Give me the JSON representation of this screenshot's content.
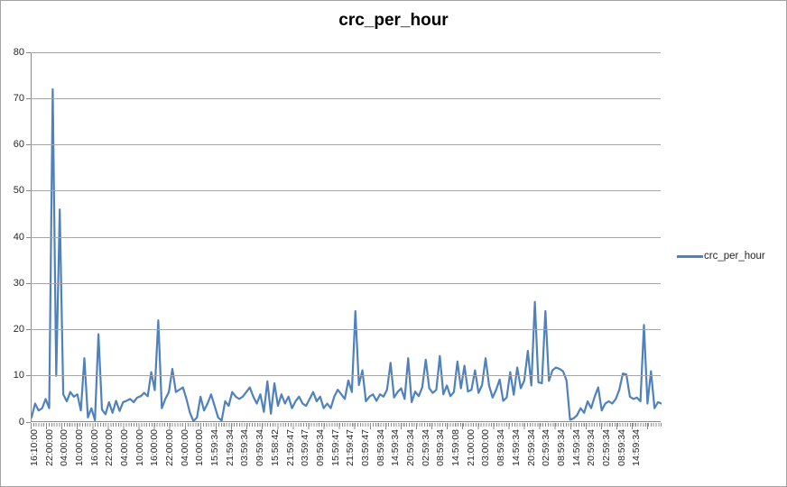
{
  "title": "crc_per_hour",
  "legend": {
    "label": "crc_per_hour"
  },
  "colors": {
    "series_line": "#4F81BD",
    "gridline": "#A6A6A6",
    "axis_line": "#8C8C8C",
    "tick_text": "#262626",
    "title_text": "#000000",
    "chart_border": "#A3A3A3",
    "background": "#FFFFFF"
  },
  "chart_data": {
    "type": "line",
    "title": "crc_per_hour",
    "xlabel": "",
    "ylabel": "",
    "ylim": [
      0,
      80
    ],
    "yticks": [
      0,
      10,
      20,
      30,
      40,
      50,
      60,
      70,
      80
    ],
    "grid": true,
    "legend_position": "right",
    "x_tick_labels": [
      "16:10:00",
      "22:00:00",
      "04:00:00",
      "10:00:00",
      "16:00:00",
      "22:00:00",
      "04:00:00",
      "10:00:00",
      "16:00:00",
      "22:00:00",
      "04:00:00",
      "10:00:00",
      "15:59:34",
      "21:59:34",
      "03:59:34",
      "09:59:34",
      "15:58:42",
      "21:59:47",
      "03:59:47",
      "09:59:34",
      "15:59:47",
      "21:59:47",
      "03:59:47",
      "08:59:34",
      "14:59:34",
      "20:59:34",
      "02:59:34",
      "08:59:34",
      "14:59:08",
      "21:00:00",
      "03:00:00",
      "08:59:34",
      "14:59:34",
      "20:59:34",
      "02:59:34",
      "08:59:34",
      "14:59:34",
      "20:59:34",
      "02:59:34",
      "08:59:34",
      "14:59:34"
    ],
    "series": [
      {
        "name": "crc_per_hour",
        "color": "#4F81BD",
        "values": [
          1,
          4,
          2.5,
          3,
          5,
          3,
          72,
          10,
          46,
          6,
          4.5,
          6.5,
          5.5,
          6,
          2.5,
          13.8,
          1,
          3,
          0.4,
          19,
          2.7,
          1.7,
          4.3,
          2,
          4.6,
          2.4,
          4.3,
          4.6,
          5,
          4.3,
          5.3,
          5.6,
          6.3,
          5.6,
          10.8,
          6.9,
          22,
          3,
          5,
          6.5,
          11.5,
          6.5,
          7,
          7.5,
          5,
          2,
          0.2,
          1,
          5.5,
          2.5,
          4,
          6,
          3.5,
          1,
          0.3,
          4.5,
          3.5,
          6.5,
          5.5,
          5,
          5.5,
          6.5,
          7.5,
          5.5,
          4,
          6,
          2.2,
          8.8,
          1.8,
          8.4,
          3.5,
          6,
          4,
          5.5,
          3,
          4.5,
          5.5,
          4,
          3.5,
          5,
          6.5,
          4.5,
          5.5,
          3,
          4,
          3,
          5.5,
          7,
          6,
          5,
          9,
          6.5,
          24,
          8,
          11.2,
          4.5,
          5.5,
          6,
          4.6,
          6,
          5.5,
          7,
          12.8,
          5.3,
          6.5,
          7.3,
          5,
          13.8,
          4.3,
          6.6,
          5.6,
          7.5,
          13.5,
          7.3,
          6.3,
          7,
          14.3,
          6,
          7.9,
          5.6,
          6.5,
          13.1,
          7.3,
          12.2,
          6.6,
          7,
          11.2,
          6.3,
          8,
          13.8,
          7.9,
          5.3,
          7,
          9.2,
          4.6,
          5.3,
          10.8,
          5.9,
          11.8,
          7.3,
          9,
          15.4,
          7.9,
          26,
          8.6,
          8.4,
          24,
          8.9,
          11.2,
          11.8,
          11.5,
          11,
          9,
          0.5,
          0.8,
          1.5,
          3,
          2,
          4.5,
          3,
          5.5,
          7.5,
          2.5,
          4,
          4.5,
          4,
          5,
          7,
          10.5,
          10.3,
          5.5,
          5,
          5.3,
          4.5,
          21,
          4,
          11,
          3,
          4.3,
          4
        ]
      }
    ]
  }
}
